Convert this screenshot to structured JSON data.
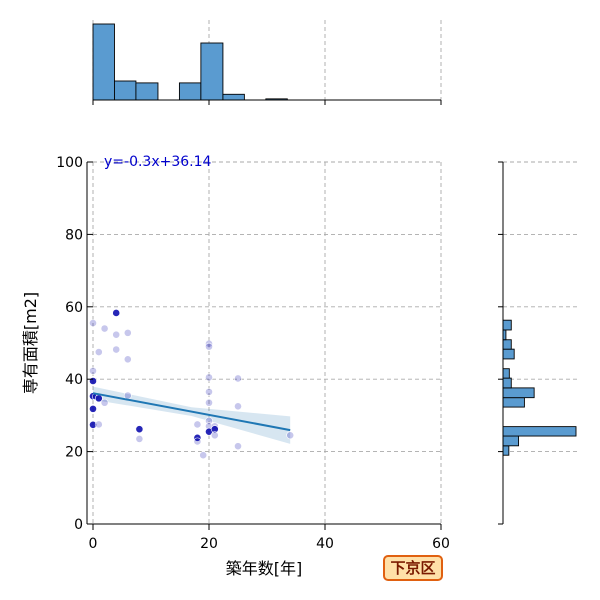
{
  "chart_data": {
    "type": "scatter",
    "xlabel": "築年数[年]",
    "ylabel": "専有面積[m2]",
    "xlim": [
      0,
      60
    ],
    "ylim": [
      0,
      100
    ],
    "x_ticks": [
      "0",
      "20",
      "40",
      "60"
    ],
    "y_ticks": [
      "0",
      "20",
      "40",
      "60",
      "80",
      "100"
    ],
    "grid": true,
    "annotation": "y=-0.3x+36.14",
    "regression": {
      "slope": -0.3,
      "intercept": 36.14,
      "x_range": [
        0,
        34
      ]
    },
    "colors": {
      "points": "#0000aa",
      "regression": "#1f77b4",
      "histogram": "#5a9bd0",
      "annotation": "#0000cc"
    },
    "points": [
      {
        "x": 0,
        "y": 55.5,
        "dark": false
      },
      {
        "x": 0,
        "y": 42.3,
        "dark": false
      },
      {
        "x": 0,
        "y": 39.5,
        "dark": true
      },
      {
        "x": 0,
        "y": 35.3,
        "dark": true
      },
      {
        "x": 0,
        "y": 31.8,
        "dark": true
      },
      {
        "x": 0,
        "y": 27.4,
        "dark": true
      },
      {
        "x": 0.5,
        "y": 35.2,
        "dark": false
      },
      {
        "x": 1,
        "y": 47.5,
        "dark": false
      },
      {
        "x": 1,
        "y": 34.7,
        "dark": true
      },
      {
        "x": 1,
        "y": 27.5,
        "dark": false
      },
      {
        "x": 2,
        "y": 54.0,
        "dark": false
      },
      {
        "x": 2,
        "y": 33.5,
        "dark": false
      },
      {
        "x": 4,
        "y": 58.3,
        "dark": true
      },
      {
        "x": 4,
        "y": 52.3,
        "dark": false
      },
      {
        "x": 4,
        "y": 48.2,
        "dark": false
      },
      {
        "x": 6,
        "y": 52.8,
        "dark": false
      },
      {
        "x": 6,
        "y": 45.5,
        "dark": false
      },
      {
        "x": 6,
        "y": 35.5,
        "dark": false
      },
      {
        "x": 8,
        "y": 26.2,
        "dark": true
      },
      {
        "x": 8,
        "y": 23.5,
        "dark": false
      },
      {
        "x": 18,
        "y": 27.5,
        "dark": false
      },
      {
        "x": 18,
        "y": 23.8,
        "dark": true
      },
      {
        "x": 18,
        "y": 22.8,
        "dark": false
      },
      {
        "x": 19,
        "y": 19.0,
        "dark": false
      },
      {
        "x": 20,
        "y": 49.8,
        "dark": false
      },
      {
        "x": 20,
        "y": 49.0,
        "dark": false
      },
      {
        "x": 20,
        "y": 40.5,
        "dark": false
      },
      {
        "x": 20,
        "y": 36.5,
        "dark": false
      },
      {
        "x": 20,
        "y": 33.5,
        "dark": false
      },
      {
        "x": 20,
        "y": 28.5,
        "dark": false
      },
      {
        "x": 20,
        "y": 27.0,
        "dark": false
      },
      {
        "x": 20,
        "y": 25.5,
        "dark": true
      },
      {
        "x": 21,
        "y": 27.0,
        "dark": false
      },
      {
        "x": 21,
        "y": 26.2,
        "dark": true
      },
      {
        "x": 21,
        "y": 24.5,
        "dark": false
      },
      {
        "x": 25,
        "y": 40.2,
        "dark": false
      },
      {
        "x": 25,
        "y": 32.5,
        "dark": false
      },
      {
        "x": 25,
        "y": 21.5,
        "dark": false
      },
      {
        "x": 34,
        "y": 24.5,
        "dark": false
      }
    ],
    "x_hist": [
      {
        "start": 0,
        "end": 3.7,
        "count": 20
      },
      {
        "start": 3.7,
        "end": 7.4,
        "count": 5
      },
      {
        "start": 7.4,
        "end": 11.2,
        "count": 4.5
      },
      {
        "start": 11.2,
        "end": 14.9,
        "count": 0
      },
      {
        "start": 14.9,
        "end": 18.6,
        "count": 4.5
      },
      {
        "start": 18.6,
        "end": 22.4,
        "count": 15
      },
      {
        "start": 22.4,
        "end": 26.1,
        "count": 1.5
      },
      {
        "start": 26.1,
        "end": 29.8,
        "count": 0
      },
      {
        "start": 29.8,
        "end": 33.5,
        "count": 0.3
      }
    ],
    "y_hist": [
      {
        "start": 19,
        "end": 21.6,
        "count": 1.2
      },
      {
        "start": 21.6,
        "end": 24.3,
        "count": 3.2
      },
      {
        "start": 24.3,
        "end": 26.9,
        "count": 15
      },
      {
        "start": 26.9,
        "end": 29.6,
        "count": 0
      },
      {
        "start": 29.6,
        "end": 32.3,
        "count": 0
      },
      {
        "start": 32.3,
        "end": 34.9,
        "count": 4.4
      },
      {
        "start": 34.9,
        "end": 37.6,
        "count": 6.4
      },
      {
        "start": 37.6,
        "end": 40.3,
        "count": 1.7
      },
      {
        "start": 40.3,
        "end": 42.9,
        "count": 1.3
      },
      {
        "start": 42.9,
        "end": 45.6,
        "count": 0
      },
      {
        "start": 45.6,
        "end": 48.3,
        "count": 2.3
      },
      {
        "start": 48.3,
        "end": 50.9,
        "count": 1.7
      },
      {
        "start": 50.9,
        "end": 53.6,
        "count": 0.6
      },
      {
        "start": 53.6,
        "end": 56.3,
        "count": 1.7
      },
      {
        "start": 56.3,
        "end": 59.0,
        "count": 0
      }
    ]
  },
  "badge": {
    "label": "下京区"
  }
}
